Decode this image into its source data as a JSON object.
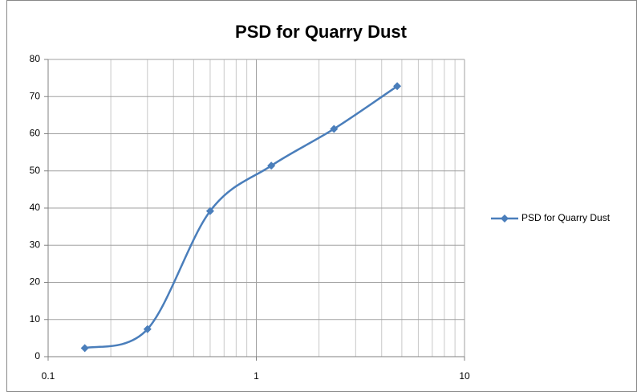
{
  "chart_data": {
    "type": "line",
    "title": "PSD for Quarry Dust",
    "x": [
      0.15,
      0.3,
      0.6,
      1.18,
      2.36,
      4.75
    ],
    "series": [
      {
        "name": "PSD for Quarry Dust",
        "color": "#4a7ebb",
        "values": [
          2.3,
          7.4,
          39.2,
          51.4,
          61.3,
          72.8
        ]
      }
    ],
    "xlim": [
      0.1,
      10
    ],
    "xticks": [
      0.1,
      1,
      10
    ],
    "xscale": "log",
    "ylim": [
      0,
      80
    ],
    "yticks": [
      0,
      10,
      20,
      30,
      40,
      50,
      60,
      70,
      80
    ],
    "grid": true,
    "smooth": true,
    "legend": "right"
  }
}
